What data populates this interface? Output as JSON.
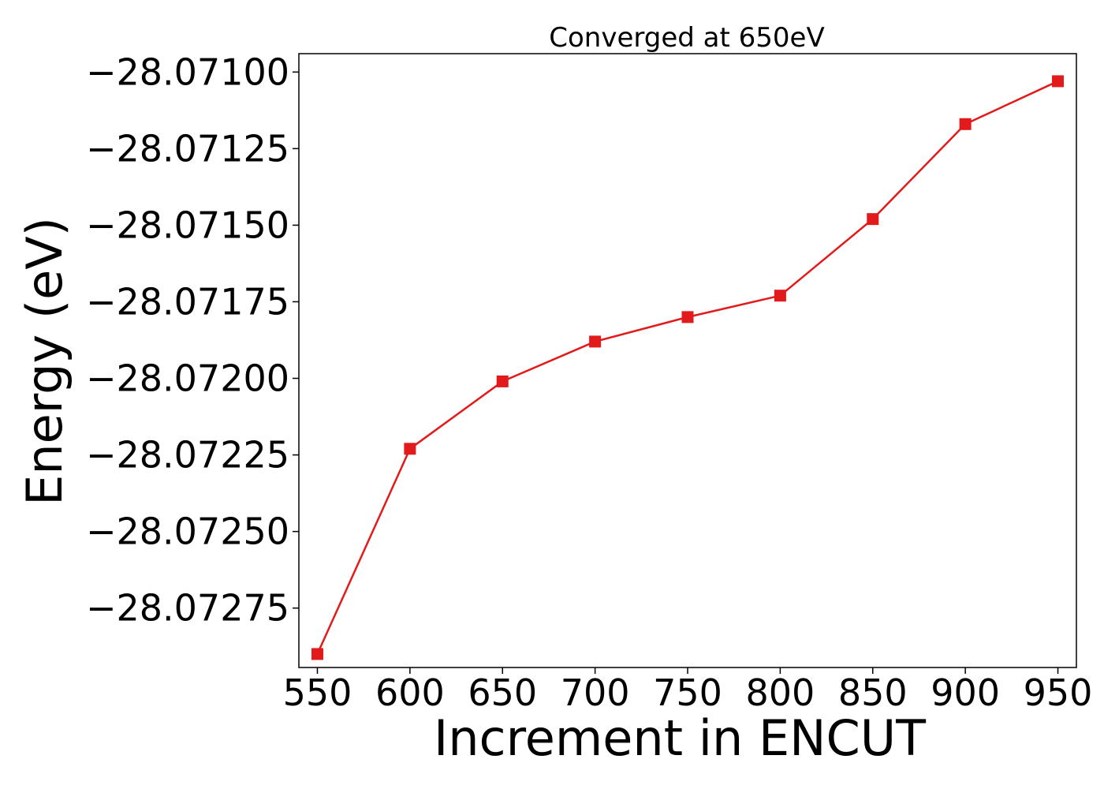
{
  "chart_data": {
    "type": "line",
    "title": "Converged at 650eV",
    "xlabel": "Increment in ENCUT",
    "ylabel": "Energy (eV)",
    "x": [
      550,
      600,
      650,
      700,
      750,
      800,
      850,
      900,
      950
    ],
    "series": [
      {
        "values": [
          -28.0729,
          -28.07223,
          -28.07201,
          -28.07188,
          -28.0718,
          -28.07173,
          -28.07148,
          -28.07117,
          -28.07103
        ],
        "color": "#e31a1c",
        "marker": "square"
      }
    ],
    "xticks": [
      550,
      600,
      650,
      700,
      750,
      800,
      850,
      900,
      950
    ],
    "xtick_labels": [
      "550",
      "600",
      "650",
      "700",
      "750",
      "800",
      "850",
      "900",
      "950"
    ],
    "yticks": [
      -28.071,
      -28.07125,
      -28.0715,
      -28.07175,
      -28.072,
      -28.07225,
      -28.0725,
      -28.07275
    ],
    "ytick_labels": [
      "−28.07100",
      "−28.07125",
      "−28.07150",
      "−28.07175",
      "−28.07200",
      "−28.07225",
      "−28.07250",
      "−28.07275"
    ],
    "xlim": [
      540,
      960
    ],
    "ylim": [
      -28.072944,
      -28.07094
    ],
    "grid": false,
    "legend": false
  }
}
